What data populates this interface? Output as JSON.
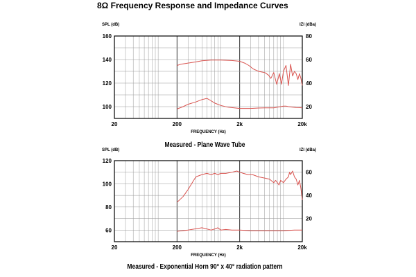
{
  "page": {
    "title": "8Ω Frequency Response and Impedance Curves"
  },
  "colors": {
    "curve": "#d9534f",
    "grid": "#999999",
    "frame": "#000000"
  },
  "chart_data": [
    {
      "type": "line",
      "title": "Measured - Plane Wave Tube",
      "xlabel": "FREQUENCY (Hz)",
      "ylabel": "SPL (dB)",
      "y2label": "IZI (dBa)",
      "x_scale": "log",
      "xlim": [
        20,
        20000
      ],
      "ylim": [
        90,
        160
      ],
      "y2lim": [
        10,
        80
      ],
      "x_ticks": [
        {
          "value": 20,
          "label": "20"
        },
        {
          "value": 200,
          "label": "200"
        },
        {
          "value": 2000,
          "label": "2k"
        },
        {
          "value": 20000,
          "label": "20k"
        }
      ],
      "y_ticks": [
        {
          "value": 100,
          "label": "100"
        },
        {
          "value": 120,
          "label": "120"
        },
        {
          "value": 140,
          "label": "140"
        },
        {
          "value": 160,
          "label": "160"
        }
      ],
      "y2_ticks": [
        {
          "value": 20,
          "label": "20"
        },
        {
          "value": 40,
          "label": "40"
        },
        {
          "value": 60,
          "label": "60"
        },
        {
          "value": 80,
          "label": "80"
        }
      ],
      "grid": true,
      "series": [
        {
          "axis": "left",
          "x": [
            200,
            230,
            300,
            400,
            500,
            700,
            1000,
            1500,
            2000,
            2400,
            2800,
            3300,
            4000,
            5000,
            5700,
            6300,
            7000,
            7800,
            8600,
            9300,
            10000,
            11000,
            12000,
            13000,
            14000,
            15000,
            16000,
            17000,
            18000,
            19000,
            20000
          ],
          "y": [
            135,
            136,
            137,
            138,
            139,
            139.5,
            139.5,
            139.2,
            138.5,
            137,
            135,
            132,
            130,
            129,
            127,
            124,
            129,
            119,
            128,
            119,
            130,
            135,
            118,
            136,
            126,
            130,
            128,
            123,
            128,
            124,
            118
          ]
        },
        {
          "axis": "left",
          "x": [
            200,
            250,
            300,
            400,
            500,
            600,
            700,
            800,
            1000,
            1300,
            2000,
            3000,
            4000,
            5000,
            6000,
            7000,
            8000,
            9000,
            10000,
            11000,
            12000,
            14000,
            16000,
            18000,
            20000
          ],
          "y": [
            98,
            100,
            102,
            104,
            106,
            107,
            105,
            103,
            101,
            99.5,
            98.5,
            98.5,
            98.8,
            99,
            99,
            99,
            99.5,
            100,
            100.5,
            100.5,
            100,
            99.5,
            99.3,
            99.2,
            99
          ]
        }
      ]
    },
    {
      "type": "line",
      "title": "Measured - Exponential Horn 90° x 40° radiation pattern",
      "xlabel": "FREQUENCY (Hz)",
      "ylabel": "SPL (dB)",
      "y2label": "IZI (dBa)",
      "x_scale": "log",
      "xlim": [
        20,
        20000
      ],
      "ylim": [
        50,
        120
      ],
      "y2lim": [
        0,
        70
      ],
      "x_ticks": [
        {
          "value": 20,
          "label": "20"
        },
        {
          "value": 200,
          "label": "200"
        },
        {
          "value": 2000,
          "label": "2k"
        },
        {
          "value": 20000,
          "label": "20k"
        }
      ],
      "y_ticks": [
        {
          "value": 60,
          "label": "60"
        },
        {
          "value": 80,
          "label": "80"
        },
        {
          "value": 100,
          "label": "100"
        },
        {
          "value": 120,
          "label": "120"
        }
      ],
      "y2_ticks": [
        {
          "value": 20,
          "label": "20"
        },
        {
          "value": 40,
          "label": "40"
        },
        {
          "value": 60,
          "label": "60"
        }
      ],
      "grid": true,
      "series": [
        {
          "axis": "left",
          "x": [
            200,
            250,
            300,
            350,
            400,
            500,
            600,
            700,
            800,
            900,
            1000,
            1200,
            1500,
            1800,
            2000,
            2300,
            2700,
            3200,
            4000,
            5000,
            6000,
            7000,
            7500,
            8000,
            8500,
            9000,
            10000,
            11000,
            12000,
            12500,
            13000,
            14000,
            15000,
            16000,
            17000,
            18000,
            19000,
            20000
          ],
          "y": [
            84,
            89,
            95,
            101,
            106,
            108,
            109,
            108,
            109,
            108,
            109,
            109,
            110,
            111,
            110,
            109,
            108,
            108,
            106,
            105,
            104,
            101,
            103,
            101,
            99,
            103,
            101,
            104,
            106,
            110,
            108,
            111,
            106,
            104,
            99,
            103,
            96,
            86
          ]
        },
        {
          "axis": "left",
          "x": [
            200,
            300,
            500,
            600,
            700,
            800,
            900,
            1000,
            1200,
            1500,
            2000,
            3000,
            5000,
            10000,
            15000,
            20000
          ],
          "y": [
            59,
            60,
            62,
            61,
            60,
            61,
            62,
            60,
            60.5,
            60,
            60,
            59.5,
            59.5,
            59.5,
            60,
            60
          ]
        }
      ]
    }
  ]
}
